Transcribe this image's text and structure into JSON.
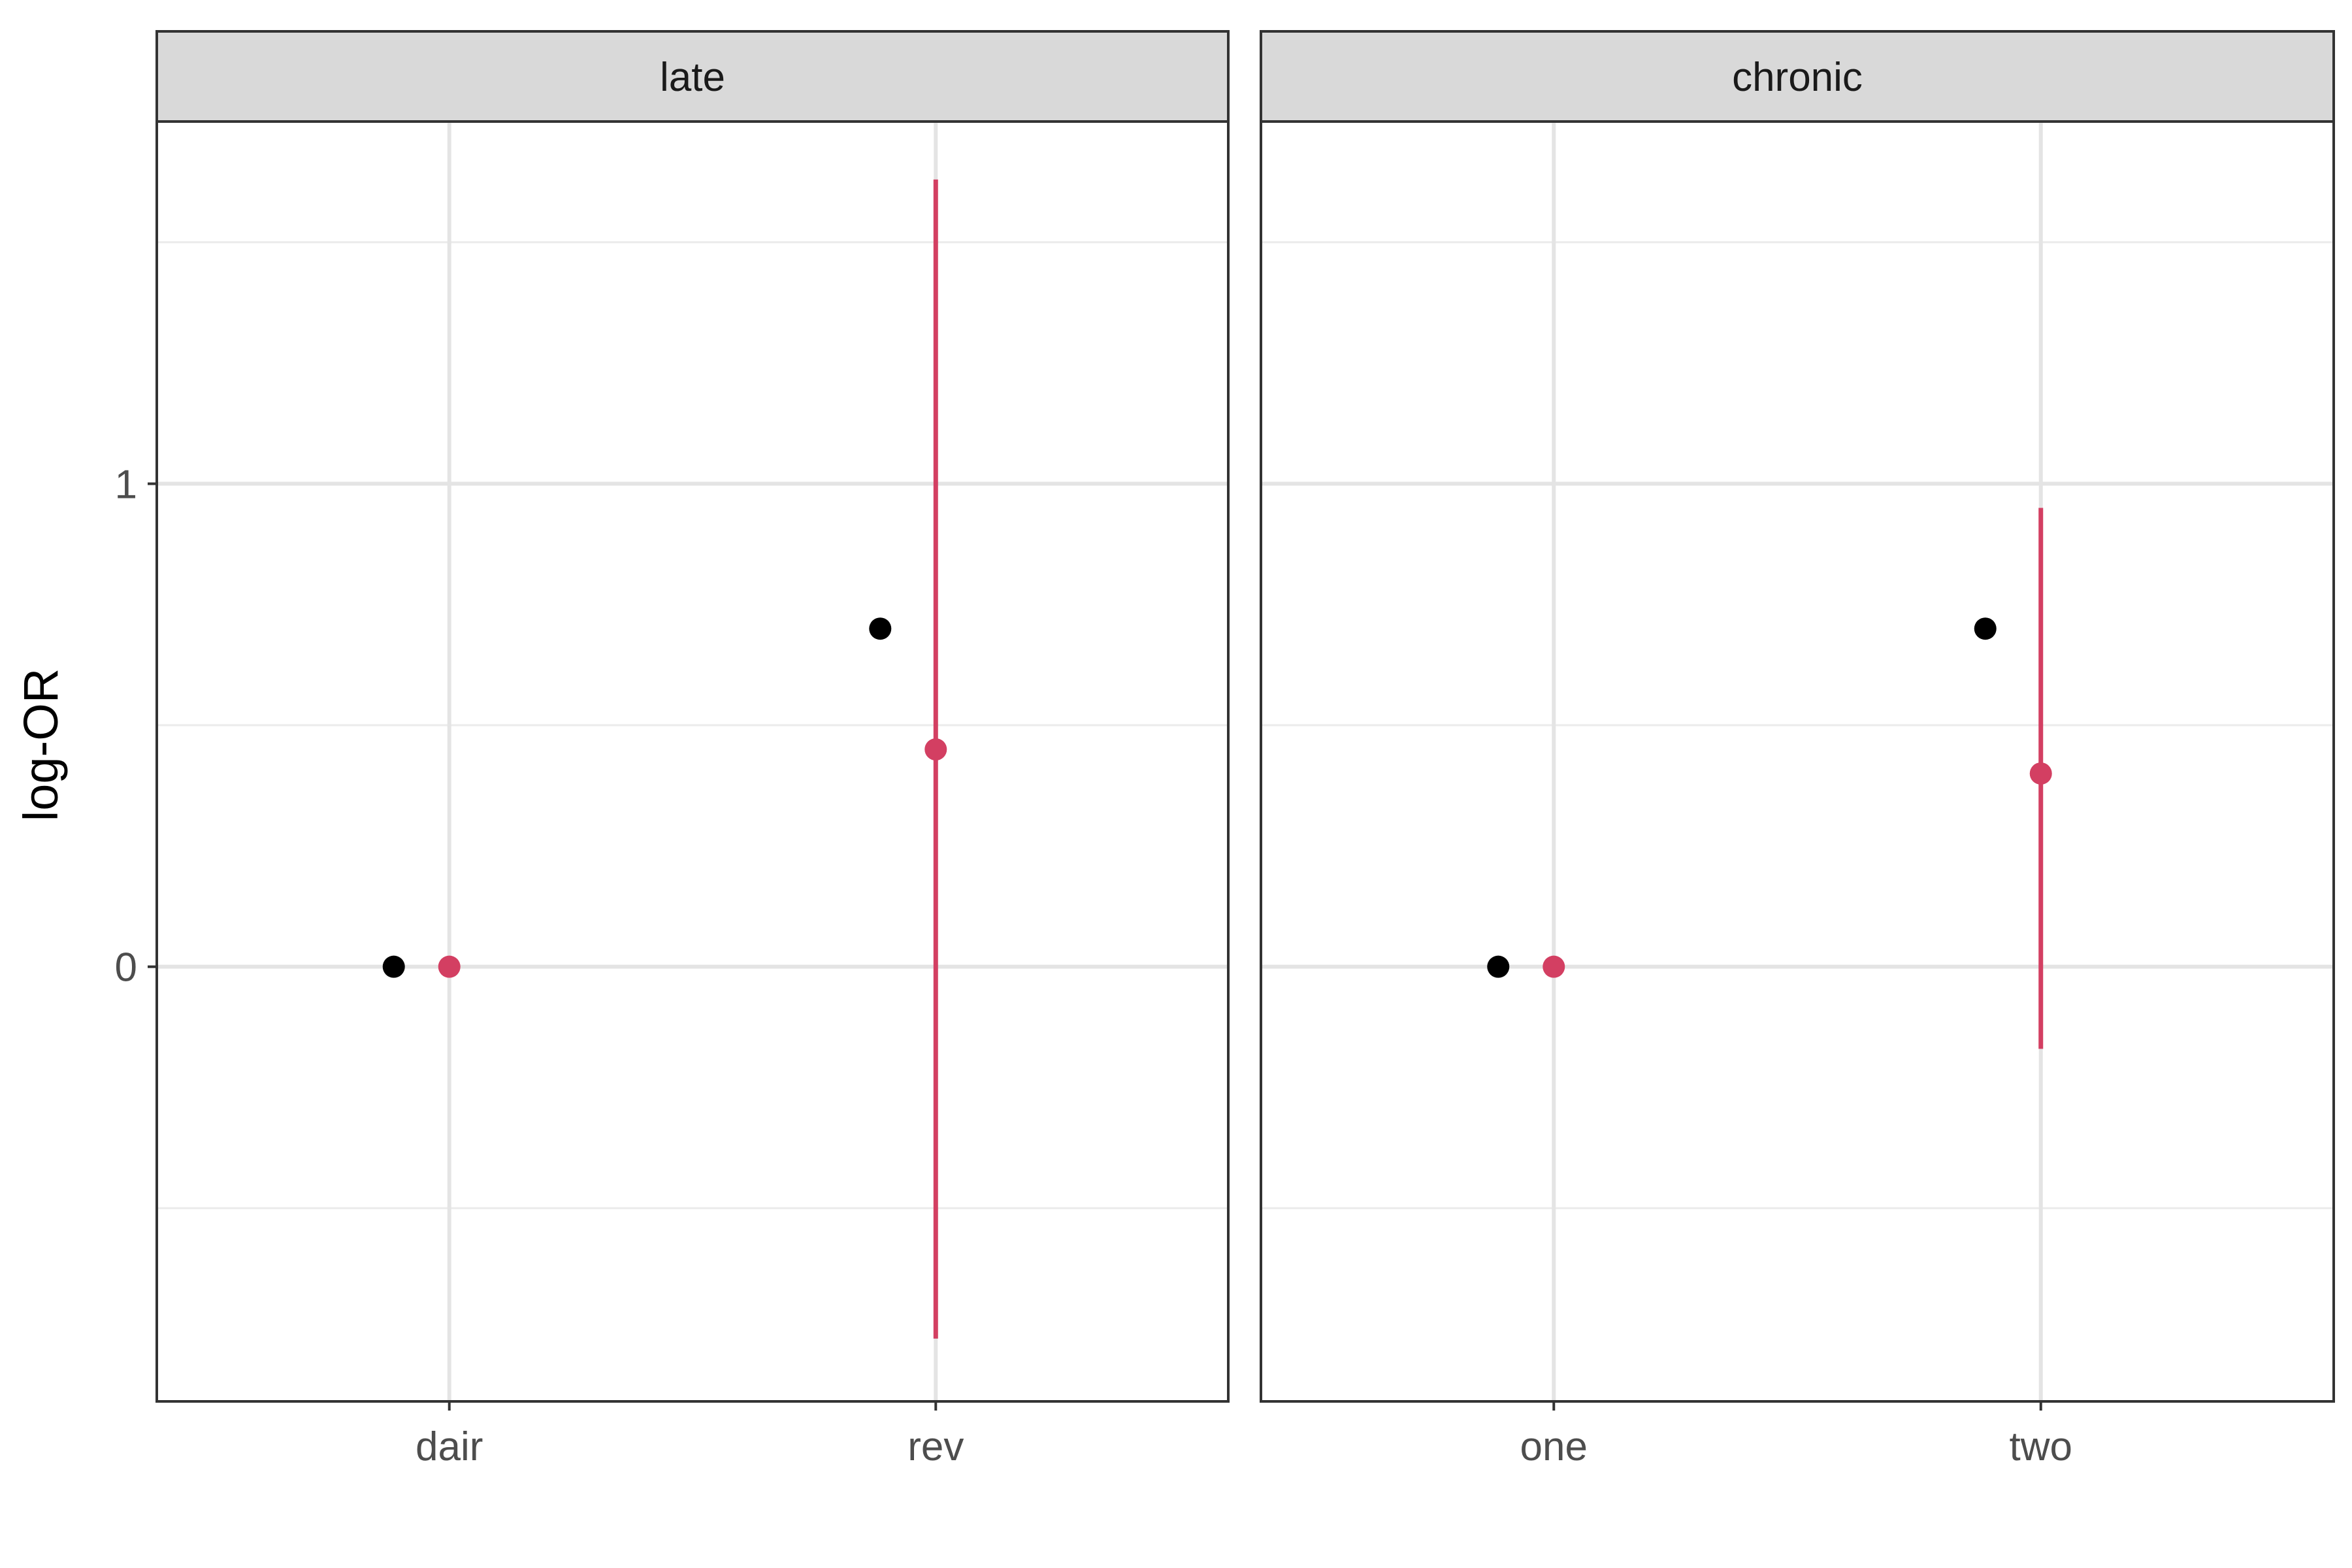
{
  "chart_data": {
    "type": "scatter",
    "ylabel": "log-OR",
    "xlabel": "",
    "ylim": [
      -0.9,
      1.75
    ],
    "yticks": [
      0,
      1
    ],
    "grid": true,
    "colors": {
      "observed": "#000000",
      "estimate": "#d33f62"
    },
    "panels": [
      {
        "strip": "late",
        "categories": [
          "dair",
          "rev"
        ],
        "series": [
          {
            "points": [
              {
                "x": "dair",
                "y": 0
              },
              {
                "x": "rev",
                "y": 0.7
              }
            ]
          },
          {
            "points": [
              {
                "x": "dair",
                "y": 0,
                "low": 0,
                "high": 0
              },
              {
                "x": "rev",
                "y": 0.45,
                "low": -0.77,
                "high": 1.63
              }
            ]
          }
        ]
      },
      {
        "strip": "chronic",
        "categories": [
          "one",
          "two"
        ],
        "series": [
          {
            "points": [
              {
                "x": "one",
                "y": 0
              },
              {
                "x": "two",
                "y": 0.7
              }
            ]
          },
          {
            "points": [
              {
                "x": "one",
                "y": 0,
                "low": 0,
                "high": 0
              },
              {
                "x": "two",
                "y": 0.4,
                "low": -0.17,
                "high": 0.95
              }
            ]
          }
        ]
      }
    ]
  }
}
